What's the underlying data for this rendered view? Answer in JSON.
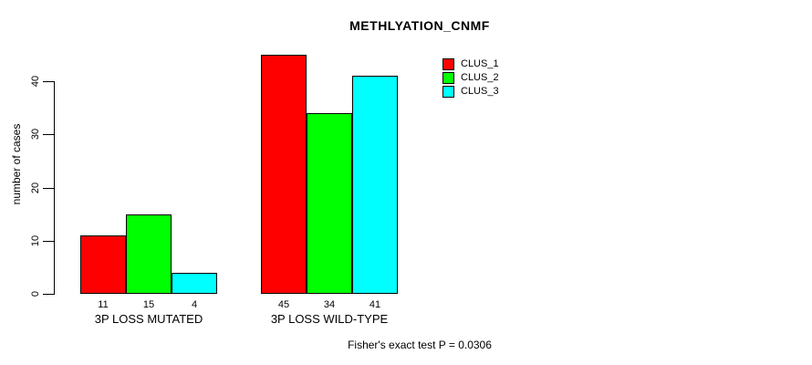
{
  "title": "METHLYATION_CNMF",
  "footnote": "Fisher's exact test P = 0.0306",
  "chart_data": {
    "type": "bar",
    "title": "METHLYATION_CNMF",
    "xlabel": "",
    "ylabel": "number of cases",
    "categories": [
      "3P LOSS MUTATED",
      "3P LOSS WILD-TYPE"
    ],
    "series": [
      {
        "name": "CLUS_1",
        "color": "#ff0000",
        "values": [
          11,
          45
        ]
      },
      {
        "name": "CLUS_2",
        "color": "#00ff00",
        "values": [
          15,
          34
        ]
      },
      {
        "name": "CLUS_3",
        "color": "#00ffff",
        "values": [
          4,
          41
        ]
      }
    ],
    "yticks": [
      0,
      10,
      20,
      30,
      40
    ],
    "ylim": [
      0,
      45
    ],
    "grid": false,
    "show_bar_values": true,
    "legend_position": "top-right",
    "annotation": "Fisher's exact test P = 0.0306"
  },
  "colors": {
    "background": "#ffffff",
    "text": "#000000",
    "axis": "#000000",
    "bar_border": "#000000"
  }
}
